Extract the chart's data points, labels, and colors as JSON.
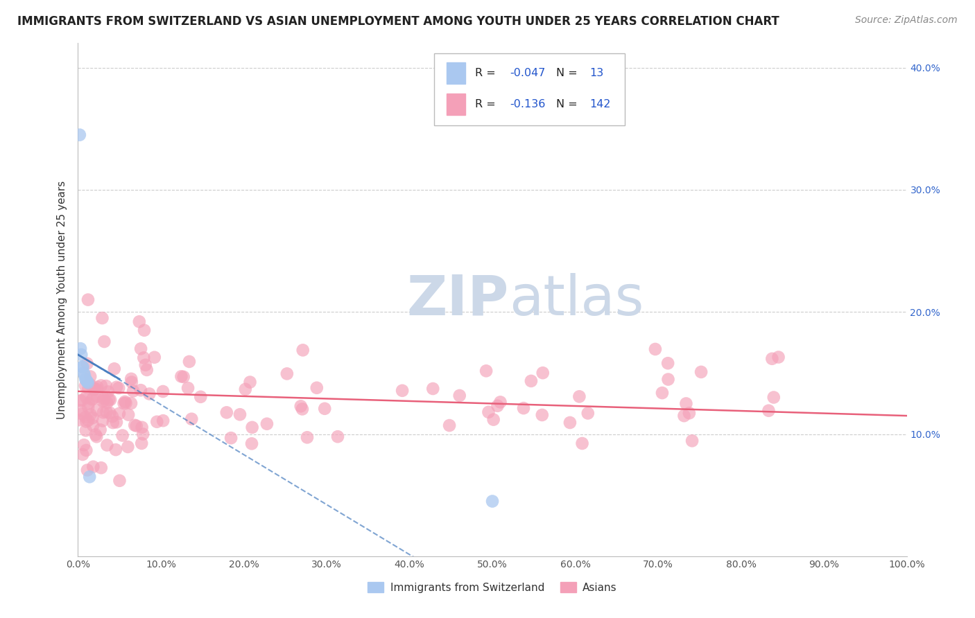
{
  "title": "IMMIGRANTS FROM SWITZERLAND VS ASIAN UNEMPLOYMENT AMONG YOUTH UNDER 25 YEARS CORRELATION CHART",
  "source": "Source: ZipAtlas.com",
  "ylabel": "Unemployment Among Youth under 25 years",
  "xlim": [
    0,
    1.0
  ],
  "ylim": [
    0,
    0.42
  ],
  "xticks": [
    0.0,
    0.1,
    0.2,
    0.3,
    0.4,
    0.5,
    0.6,
    0.7,
    0.8,
    0.9,
    1.0
  ],
  "xticklabels": [
    "0.0%",
    "10.0%",
    "20.0%",
    "30.0%",
    "40.0%",
    "50.0%",
    "60.0%",
    "70.0%",
    "80.0%",
    "90.0%",
    "100.0%"
  ],
  "ytick_vals": [
    0.0,
    0.1,
    0.2,
    0.3,
    0.4
  ],
  "yticklabels_left": [
    "",
    "",
    "",
    "",
    ""
  ],
  "yticklabels_right": [
    "",
    "10.0%",
    "20.0%",
    "30.0%",
    "40.0%"
  ],
  "color_swiss": "#aac8f0",
  "color_asian": "#f4a0b8",
  "color_swiss_line": "#4a7fc0",
  "color_asian_line": "#e8607a",
  "watermark_zip": "ZIP",
  "watermark_atlas": "atlas",
  "watermark_color": "#ccd8e8",
  "background_color": "#ffffff",
  "grid_color": "#cccccc",
  "swiss_x": [
    0.002,
    0.003,
    0.004,
    0.005,
    0.006,
    0.007,
    0.008,
    0.009,
    0.01,
    0.011,
    0.012,
    0.014,
    0.5
  ],
  "swiss_y": [
    0.345,
    0.17,
    0.165,
    0.155,
    0.155,
    0.15,
    0.148,
    0.145,
    0.144,
    0.143,
    0.142,
    0.065,
    0.045
  ]
}
